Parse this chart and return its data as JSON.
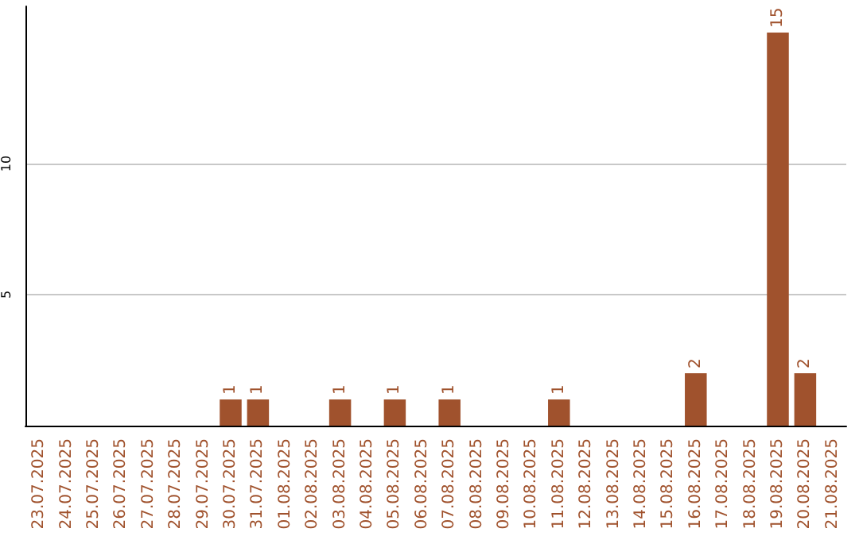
{
  "chart_data": {
    "type": "bar",
    "categories": [
      "23.07.2025",
      "24.07.2025",
      "25.07.2025",
      "26.07.2025",
      "27.07.2025",
      "28.07.2025",
      "29.07.2025",
      "30.07.2025",
      "31.07.2025",
      "01.08.2025",
      "02.08.2025",
      "03.08.2025",
      "04.08.2025",
      "05.08.2025",
      "06.08.2025",
      "07.08.2025",
      "08.08.2025",
      "09.08.2025",
      "10.08.2025",
      "11.08.2025",
      "12.08.2025",
      "13.08.2025",
      "14.08.2025",
      "15.08.2025",
      "16.08.2025",
      "17.08.2025",
      "18.08.2025",
      "19.08.2025",
      "20.08.2025",
      "21.08.2025"
    ],
    "values": [
      0,
      0,
      0,
      0,
      0,
      0,
      0,
      1,
      1,
      0,
      0,
      1,
      0,
      1,
      0,
      1,
      0,
      0,
      0,
      1,
      0,
      0,
      0,
      0,
      2,
      0,
      0,
      15,
      2,
      0
    ],
    "value_labels": [
      null,
      null,
      null,
      null,
      null,
      null,
      null,
      "1",
      "1",
      null,
      null,
      "1",
      null,
      "1",
      null,
      "1",
      null,
      null,
      null,
      "1",
      null,
      null,
      null,
      null,
      "2",
      null,
      null,
      "15",
      "2",
      null
    ],
    "color": "#a0522d",
    "ylim": [
      0,
      16
    ],
    "yticks": [
      5,
      10
    ],
    "grid": "y"
  }
}
